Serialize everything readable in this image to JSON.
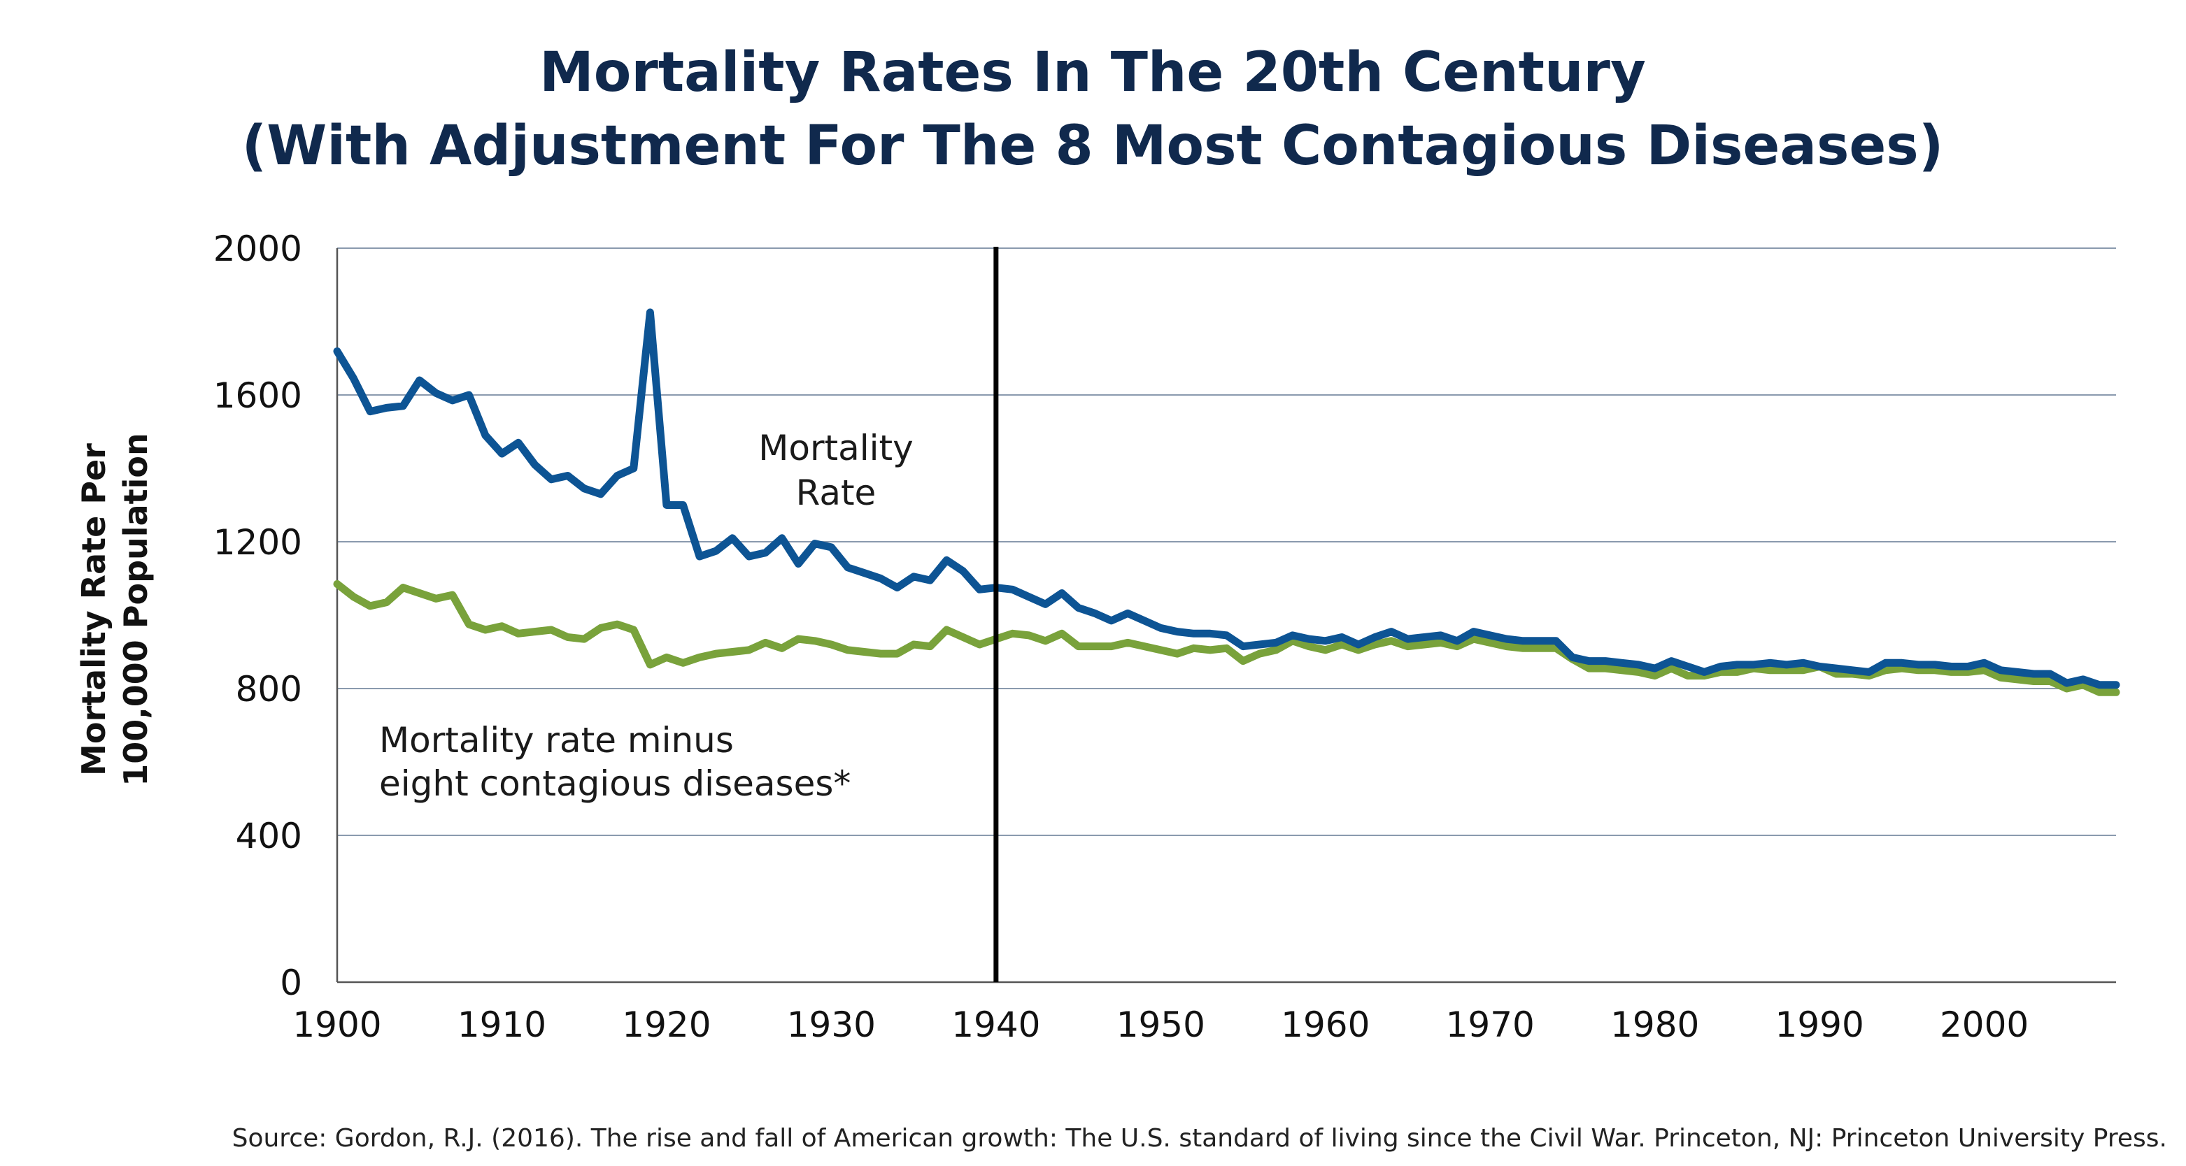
{
  "chart_data": {
    "type": "line",
    "title": [
      "Mortality Rates In The 20th  Century",
      "(With Adjustment For The 8 Most Contagious Diseases)"
    ],
    "xlabel": "",
    "ylabel": [
      "Mortality Rate Per",
      "100,000 Population"
    ],
    "xlim": [
      1900,
      2008
    ],
    "ylim": [
      0,
      2000
    ],
    "x_ticks": [
      "1900",
      "1910",
      "1920",
      "1930",
      "1940",
      "1950",
      "1960",
      "1970",
      "1980",
      "1990",
      "2000"
    ],
    "y_ticks": [
      "0",
      "400",
      "800",
      "1200",
      "1600",
      "2000"
    ],
    "grid": "horizontal",
    "reference_line": {
      "x": 1940
    },
    "annotations": {
      "mortality_rate": [
        "Mortality",
        "Rate"
      ],
      "adjusted_rate": [
        "Mortality rate minus",
        "eight contagious diseases*"
      ]
    },
    "source": "Source: Gordon, R.J. (2016). The rise and fall of American growth: The U.S. standard of living since the Civil War. Princeton, NJ: Princeton University Press.",
    "series": [
      {
        "key": "mortality_rate",
        "color": "#0d5494",
        "x": [
          1900,
          1901,
          1902,
          1903,
          1904,
          1905,
          1906,
          1907,
          1908,
          1909,
          1910,
          1911,
          1912,
          1913,
          1914,
          1915,
          1916,
          1917,
          1918,
          1919,
          1920,
          1921,
          1922,
          1923,
          1924,
          1925,
          1926,
          1927,
          1928,
          1929,
          1930,
          1931,
          1932,
          1933,
          1934,
          1935,
          1936,
          1937,
          1938,
          1939,
          1940,
          1941,
          1942,
          1943,
          1944,
          1945,
          1946,
          1947,
          1948,
          1949,
          1950,
          1951,
          1952,
          1953,
          1954,
          1955,
          1956,
          1957,
          1958,
          1959,
          1960,
          1961,
          1962,
          1963,
          1964,
          1965,
          1966,
          1967,
          1968,
          1969,
          1970,
          1971,
          1972,
          1973,
          1974,
          1975,
          1976,
          1977,
          1978,
          1979,
          1980,
          1981,
          1982,
          1983,
          1984,
          1985,
          1986,
          1987,
          1988,
          1989,
          1990,
          1991,
          1992,
          1993,
          1994,
          1995,
          1996,
          1997,
          1998,
          1999,
          2000,
          2001,
          2002,
          2003,
          2004,
          2005,
          2006,
          2007,
          2008
        ],
        "values": [
          1719,
          1645,
          1555,
          1565,
          1570,
          1640,
          1605,
          1585,
          1600,
          1490,
          1440,
          1470,
          1410,
          1370,
          1380,
          1345,
          1330,
          1380,
          1400,
          1825,
          1300,
          1300,
          1160,
          1175,
          1210,
          1160,
          1170,
          1210,
          1140,
          1195,
          1185,
          1130,
          1115,
          1100,
          1075,
          1105,
          1095,
          1150,
          1120,
          1070,
          1075,
          1070,
          1050,
          1030,
          1060,
          1020,
          1005,
          985,
          1005,
          985,
          965,
          955,
          950,
          950,
          945,
          915,
          920,
          925,
          945,
          935,
          930,
          940,
          920,
          940,
          955,
          935,
          940,
          945,
          930,
          955,
          945,
          935,
          930,
          930,
          930,
          885,
          875,
          875,
          870,
          865,
          855,
          875,
          860,
          845,
          860,
          865,
          865,
          870,
          865,
          870,
          860,
          855,
          850,
          845,
          870,
          870,
          865,
          865,
          860,
          860,
          870,
          850,
          845,
          840,
          840,
          815,
          825,
          810,
          810
        ]
      },
      {
        "key": "adjusted_rate",
        "color": "#79a23b",
        "x": [
          1900,
          1901,
          1902,
          1903,
          1904,
          1905,
          1906,
          1907,
          1908,
          1909,
          1910,
          1911,
          1912,
          1913,
          1914,
          1915,
          1916,
          1917,
          1918,
          1919,
          1920,
          1921,
          1922,
          1923,
          1924,
          1925,
          1926,
          1927,
          1928,
          1929,
          1930,
          1931,
          1932,
          1933,
          1934,
          1935,
          1936,
          1937,
          1938,
          1939,
          1940,
          1941,
          1942,
          1943,
          1944,
          1945,
          1946,
          1947,
          1948,
          1949,
          1950,
          1951,
          1952,
          1953,
          1954,
          1955,
          1956,
          1957,
          1958,
          1959,
          1960,
          1961,
          1962,
          1963,
          1964,
          1965,
          1966,
          1967,
          1968,
          1969,
          1970,
          1971,
          1972,
          1973,
          1974,
          1975,
          1976,
          1977,
          1978,
          1979,
          1980,
          1981,
          1982,
          1983,
          1984,
          1985,
          1986,
          1987,
          1988,
          1989,
          1990,
          1991,
          1992,
          1993,
          1994,
          1995,
          1996,
          1997,
          1998,
          1999,
          2000,
          2001,
          2002,
          2003,
          2004,
          2005,
          2006,
          2007,
          2008
        ],
        "values": [
          1085,
          1050,
          1025,
          1035,
          1075,
          1060,
          1045,
          1055,
          975,
          960,
          970,
          950,
          955,
          960,
          940,
          935,
          965,
          975,
          960,
          865,
          885,
          870,
          885,
          895,
          900,
          905,
          925,
          910,
          935,
          930,
          920,
          905,
          900,
          895,
          895,
          920,
          915,
          960,
          940,
          920,
          935,
          950,
          945,
          930,
          950,
          915,
          915,
          915,
          925,
          915,
          905,
          895,
          910,
          905,
          910,
          875,
          895,
          905,
          930,
          915,
          905,
          920,
          905,
          920,
          930,
          915,
          920,
          925,
          915,
          935,
          925,
          915,
          910,
          910,
          910,
          880,
          855,
          855,
          850,
          845,
          835,
          855,
          835,
          835,
          845,
          845,
          855,
          850,
          850,
          850,
          860,
          840,
          840,
          835,
          850,
          855,
          850,
          850,
          845,
          845,
          850,
          830,
          825,
          820,
          820,
          800,
          810,
          790,
          790
        ]
      }
    ]
  }
}
